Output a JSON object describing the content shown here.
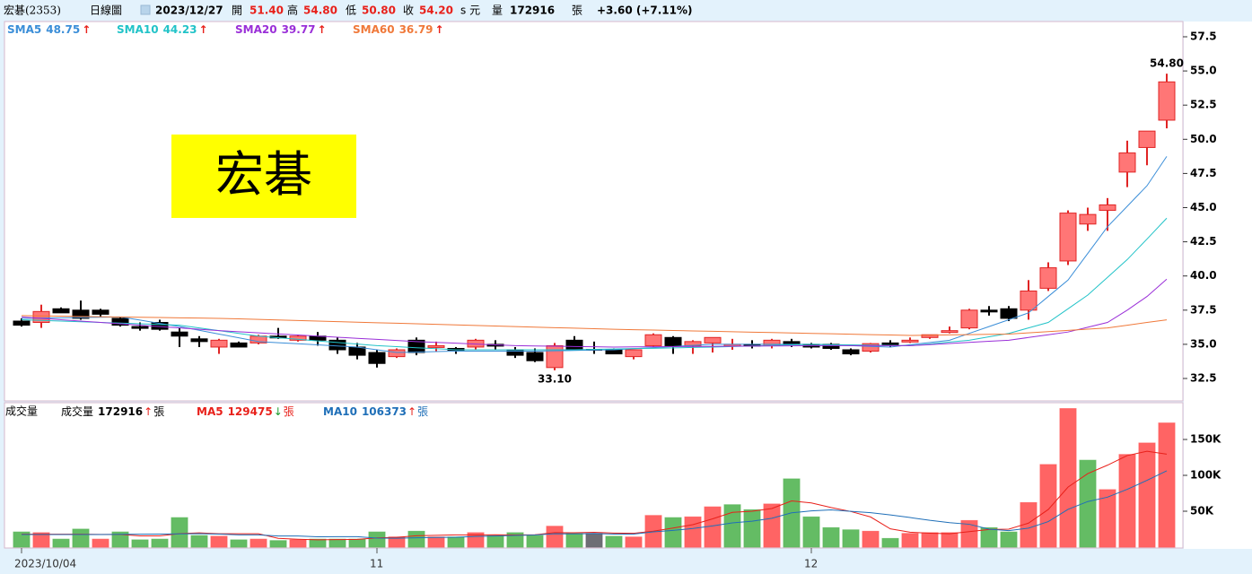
{
  "header": {
    "stock": "宏碁(2353)",
    "chart_kind": "日線圖",
    "date": "2023/12/27",
    "open_label": "開",
    "open": "51.40",
    "high_label": "高",
    "high": "54.80",
    "low_label": "低",
    "low": "50.80",
    "close_label": "收",
    "close": "54.20",
    "unit_label": "s 元",
    "volume_label": "量",
    "volume": "172916",
    "volume_unit": "張",
    "change": "+3.60 (+7.11%)"
  },
  "watermark": "宏碁",
  "chart_data": [
    {
      "type": "candlestick",
      "categories": [
        "2023/10/04",
        null,
        null,
        null,
        null,
        null,
        null,
        null,
        null,
        null,
        null,
        null,
        null,
        null,
        null,
        null,
        null,
        null,
        "11",
        null,
        null,
        null,
        null,
        null,
        null,
        null,
        null,
        null,
        null,
        null,
        null,
        null,
        null,
        null,
        null,
        null,
        null,
        null,
        null,
        null,
        "12",
        null,
        null,
        null,
        null,
        null,
        null,
        null,
        null,
        null,
        null,
        null,
        null,
        null,
        null,
        null,
        null,
        null,
        null
      ],
      "open": [
        36.7,
        36.6,
        37.6,
        37.5,
        37.5,
        36.9,
        36.3,
        36.6,
        35.9,
        35.4,
        34.8,
        35.1,
        35.1,
        35.6,
        35.3,
        35.6,
        35.3,
        34.8,
        34.4,
        34.1,
        35.3,
        34.8,
        34.7,
        34.8,
        35.0,
        34.6,
        34.4,
        33.3,
        35.3,
        34.6,
        34.6,
        34.1,
        34.9,
        35.5,
        34.9,
        35.1,
        34.9,
        35.0,
        34.9,
        35.2,
        35.0,
        35.0,
        34.6,
        34.5,
        35.1,
        35.2,
        35.5,
        35.9,
        36.2,
        37.5,
        37.6,
        37.5,
        39.1,
        41.1,
        43.8,
        44.8,
        47.6,
        49.4,
        51.4
      ],
      "high": [
        36.9,
        37.9,
        37.7,
        38.2,
        37.6,
        37.0,
        36.6,
        36.8,
        36.2,
        35.6,
        35.4,
        35.2,
        35.7,
        36.2,
        35.7,
        35.9,
        35.5,
        35.1,
        34.6,
        34.7,
        35.5,
        35.2,
        34.8,
        35.4,
        35.3,
        34.8,
        34.7,
        35.1,
        35.6,
        35.2,
        34.7,
        34.6,
        35.8,
        35.6,
        35.3,
        35.5,
        35.4,
        35.3,
        35.4,
        35.4,
        35.1,
        35.1,
        34.7,
        35.1,
        35.3,
        35.5,
        35.7,
        36.3,
        37.6,
        37.8,
        37.8,
        39.7,
        41.0,
        44.8,
        45.0,
        45.7,
        49.9,
        50.6,
        54.8
      ],
      "low": [
        36.3,
        36.2,
        37.3,
        36.8,
        37.0,
        36.3,
        36.0,
        36.0,
        34.8,
        34.8,
        34.3,
        34.8,
        35.0,
        35.4,
        35.2,
        34.9,
        34.3,
        33.9,
        33.3,
        34.0,
        34.2,
        34.5,
        34.3,
        34.6,
        34.6,
        34.0,
        33.7,
        33.1,
        34.6,
        34.3,
        34.3,
        33.9,
        34.8,
        34.3,
        34.3,
        34.4,
        34.6,
        34.7,
        34.7,
        34.8,
        34.7,
        34.6,
        34.2,
        34.4,
        34.8,
        35.1,
        35.4,
        35.8,
        36.1,
        37.1,
        36.7,
        36.8,
        38.9,
        40.8,
        43.3,
        43.3,
        46.5,
        48.1,
        50.8
      ],
      "close": [
        36.4,
        37.4,
        37.3,
        36.9,
        37.2,
        36.4,
        36.2,
        36.1,
        35.6,
        35.2,
        35.3,
        34.8,
        35.6,
        35.5,
        35.6,
        35.3,
        34.6,
        34.2,
        33.6,
        34.6,
        34.4,
        34.9,
        34.6,
        35.3,
        34.9,
        34.2,
        33.8,
        34.9,
        34.6,
        34.6,
        34.3,
        34.6,
        35.7,
        34.9,
        35.2,
        35.5,
        35.0,
        34.9,
        35.3,
        35.0,
        34.8,
        34.7,
        34.3,
        35.05,
        35.0,
        35.3,
        35.7,
        36.0,
        37.5,
        37.4,
        36.9,
        38.9,
        40.6,
        44.6,
        44.5,
        45.2,
        49.0,
        50.6,
        54.2
      ],
      "high_labels": [
        null,
        null,
        null,
        null,
        null,
        null,
        null,
        null,
        null,
        null,
        null,
        null,
        null,
        null,
        null,
        null,
        null,
        null,
        null,
        null,
        null,
        null,
        null,
        null,
        null,
        null,
        null,
        null,
        null,
        null,
        null,
        null,
        null,
        null,
        null,
        null,
        null,
        null,
        null,
        null,
        null,
        null,
        null,
        null,
        null,
        null,
        null,
        null,
        null,
        null,
        null,
        null,
        null,
        null,
        null,
        null,
        null,
        null,
        "54.80"
      ],
      "low_labels": [
        null,
        null,
        null,
        null,
        null,
        null,
        null,
        null,
        null,
        null,
        null,
        null,
        null,
        null,
        null,
        null,
        null,
        null,
        null,
        null,
        null,
        null,
        null,
        null,
        null,
        null,
        null,
        "33.10",
        null,
        null,
        null,
        null,
        null,
        null,
        null,
        null,
        null,
        null,
        null,
        null,
        null,
        null,
        null,
        null,
        null,
        null,
        null,
        null,
        null,
        null,
        null,
        null,
        null,
        null,
        null,
        null,
        null,
        null,
        null
      ],
      "up_color": "#ff7676",
      "up_stroke": "#e02424",
      "down_color": "#000000",
      "series": [
        {
          "name": "SMA5",
          "color": "#3b8ed8",
          "value_label": "48.75",
          "trend": "↑",
          "trend_color": "#e8201a",
          "values": [
            36.9,
            36.92,
            36.94,
            36.96,
            36.98,
            37.0,
            36.77,
            36.53,
            36.3,
            36.03,
            35.75,
            35.48,
            35.2,
            35.12,
            35.04,
            34.96,
            34.88,
            34.8,
            34.6,
            34.4,
            34.43,
            34.47,
            34.5,
            34.5,
            34.5,
            34.5,
            34.5,
            34.53,
            34.55,
            34.58,
            34.6,
            34.68,
            34.76,
            34.84,
            34.92,
            35.0,
            35.0,
            35.0,
            35.0,
            35.0,
            35.0,
            34.95,
            34.9,
            34.85,
            34.8,
            34.97,
            35.13,
            35.3,
            35.8,
            36.3,
            36.8,
            37.3,
            38.5,
            39.7,
            41.65,
            43.6,
            45.1,
            46.6,
            48.75
          ]
        },
        {
          "name": "SMA10",
          "color": "#22c3c8",
          "value_label": "44.23",
          "trend": "↑",
          "trend_color": "#e8201a",
          "values": [
            36.8,
            36.75,
            36.7,
            36.65,
            36.6,
            36.55,
            36.5,
            36.45,
            36.4,
            36.2,
            36.0,
            35.8,
            35.6,
            35.48,
            35.37,
            35.25,
            35.13,
            35.02,
            34.9,
            34.83,
            34.75,
            34.68,
            34.6,
            34.6,
            34.6,
            34.6,
            34.6,
            34.6,
            34.6,
            34.63,
            34.66,
            34.69,
            34.71,
            34.74,
            34.77,
            34.8,
            34.84,
            34.88,
            34.92,
            34.96,
            35.0,
            34.98,
            34.96,
            34.94,
            34.92,
            34.9,
            35.03,
            35.17,
            35.3,
            35.55,
            35.8,
            36.2,
            36.6,
            37.6,
            38.6,
            39.9,
            41.2,
            42.7,
            44.23
          ]
        },
        {
          "name": "SMA20",
          "color": "#9a2fd8",
          "value_label": "39.77",
          "trend": "↑",
          "trend_color": "#e8201a",
          "values": [
            37.0,
            36.9,
            36.8,
            36.7,
            36.6,
            36.5,
            36.4,
            36.3,
            36.2,
            36.1,
            36.0,
            35.92,
            35.84,
            35.76,
            35.68,
            35.6,
            35.52,
            35.44,
            35.36,
            35.28,
            35.2,
            35.14,
            35.08,
            35.02,
            34.96,
            34.9,
            34.88,
            34.86,
            34.84,
            34.82,
            34.8,
            34.81,
            34.82,
            34.83,
            34.84,
            34.85,
            34.86,
            34.87,
            34.88,
            34.89,
            34.9,
            34.9,
            34.9,
            34.9,
            34.9,
            34.9,
            34.98,
            35.06,
            35.14,
            35.22,
            35.3,
            35.5,
            35.7,
            35.9,
            36.25,
            36.6,
            37.5,
            38.5,
            39.77
          ]
        },
        {
          "name": "SMA60",
          "color": "#f0793a",
          "value_label": "36.79",
          "trend": "↑",
          "trend_color": "#e8201a",
          "values": [
            37.1,
            37.08,
            37.06,
            37.04,
            37.02,
            37.0,
            36.98,
            36.96,
            36.94,
            36.92,
            36.9,
            36.86,
            36.82,
            36.78,
            36.74,
            36.7,
            36.66,
            36.62,
            36.58,
            36.54,
            36.5,
            36.46,
            36.42,
            36.38,
            36.34,
            36.3,
            36.26,
            36.22,
            36.18,
            36.14,
            36.1,
            36.07,
            36.04,
            36.01,
            35.98,
            35.95,
            35.92,
            35.89,
            35.86,
            35.83,
            35.8,
            35.77,
            35.74,
            35.71,
            35.68,
            35.65,
            35.67,
            35.69,
            35.71,
            35.73,
            35.75,
            35.84,
            35.93,
            36.02,
            36.11,
            36.2,
            36.4,
            36.6,
            36.79
          ]
        }
      ],
      "ylim": [
        30.86,
        58.55
      ],
      "yticks": [
        32.5,
        {
          "value": 35,
          "label": "35.0"
        },
        37.5,
        {
          "value": 40,
          "label": "40.0"
        },
        42.5,
        {
          "value": 45,
          "label": "45.0"
        },
        47.5,
        {
          "value": 50,
          "label": "50.0"
        },
        52.5,
        {
          "value": 55,
          "label": "55.0"
        },
        57.5
      ]
    },
    {
      "type": "volume",
      "title": "成交量",
      "unit": "張",
      "bar_name": "成交量",
      "bar_value_label": "172916",
      "bar_trend": "↑",
      "bar_trend_color": "#e8201a",
      "up_color": "#ff5c5c",
      "down_color": "#5cb85c",
      "flat_color": "#66666e",
      "values": [
        21000,
        20000,
        11000,
        25000,
        11000,
        21000,
        10000,
        11000,
        41000,
        16000,
        15000,
        10000,
        11000,
        9000,
        10000,
        11000,
        11000,
        11000,
        21000,
        14000,
        22000,
        14000,
        14000,
        20000,
        16000,
        20000,
        16000,
        29000,
        19000,
        19000,
        15000,
        14000,
        44000,
        41000,
        42000,
        56000,
        59000,
        52000,
        60000,
        95000,
        42000,
        27000,
        24000,
        22000,
        12000,
        19000,
        20000,
        20000,
        37000,
        27000,
        21000,
        62000,
        115000,
        193000,
        121000,
        80000,
        129000,
        145000,
        172916
      ],
      "series": [
        {
          "name": "MA5",
          "color": "#e8201a",
          "value_label": "129475",
          "trend": "↓",
          "trend_color": "#1a9a2a",
          "values": [
            18000,
            18000,
            18000,
            18000,
            17600,
            17600,
            15600,
            15600,
            18800,
            19800,
            18600,
            18600,
            18600,
            12200,
            11000,
            10200,
            10400,
            10800,
            12800,
            13600,
            15800,
            16400,
            17000,
            16800,
            17200,
            16800,
            17200,
            20200,
            20000,
            20600,
            19600,
            19200,
            22200,
            26600,
            31200,
            39400,
            48400,
            50000,
            53800,
            64400,
            61600,
            55200,
            49600,
            42000,
            25400,
            20800,
            19400,
            18600,
            21600,
            24600,
            25000,
            33400,
            52400,
            83600,
            102400,
            114200,
            127600,
            133600,
            129475
          ]
        },
        {
          "name": "MA10",
          "color": "#1f6fb8",
          "value_label": "106373",
          "trend": "↑",
          "trend_color": "#e8201a",
          "values": [
            17500,
            17500,
            17500,
            17500,
            17500,
            17800,
            18000,
            18200,
            18400,
            18700,
            18100,
            17100,
            17100,
            15500,
            15400,
            14400,
            14500,
            14500,
            12500,
            12300,
            13000,
            13400,
            13700,
            14800,
            15400,
            16300,
            16800,
            18600,
            18400,
            18900,
            18200,
            18200,
            21200,
            23300,
            25900,
            29500,
            33800,
            36100,
            40200,
            47800,
            50500,
            51800,
            49800,
            47900,
            44900,
            41200,
            37300,
            34100,
            31800,
            25000,
            22900,
            26400,
            35500,
            52600,
            63500,
            69600,
            80500,
            93000,
            106373
          ]
        }
      ],
      "ylim": [
        0,
        200000
      ],
      "yticks": [
        {
          "value": 50000,
          "label": "50K"
        },
        {
          "value": 100000,
          "label": "100K"
        },
        {
          "value": 150000,
          "label": "150K"
        }
      ]
    }
  ]
}
